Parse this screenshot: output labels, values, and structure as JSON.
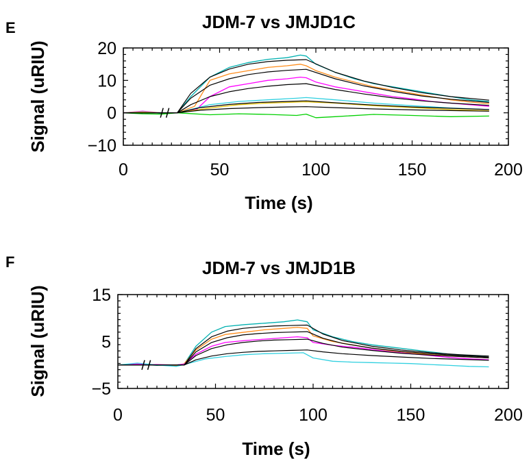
{
  "chart_data": [
    {
      "type": "line",
      "panel_label": "E",
      "title": "JDM-7 vs JMJD1C",
      "xlabel": "Time (s)",
      "ylabel": "Signal (uRIU)",
      "xlim": [
        0,
        200
      ],
      "ylim": [
        -10,
        20
      ],
      "xticks": [
        0,
        50,
        100,
        150,
        200
      ],
      "yticks": [
        -10,
        0,
        10,
        20
      ],
      "grid": false,
      "break_marks_x": [
        20,
        23
      ],
      "series": [
        {
          "color": "#00b0b0",
          "x": [
            0,
            10,
            20,
            28,
            35,
            45,
            55,
            65,
            75,
            85,
            92,
            95,
            100,
            110,
            120,
            130,
            140,
            150,
            160,
            170,
            180,
            190
          ],
          "y": [
            0,
            0.4,
            -0.2,
            0,
            5,
            11,
            14,
            15.5,
            16.5,
            17,
            17.8,
            17.5,
            15,
            12.5,
            10.5,
            9,
            8,
            7,
            6,
            5,
            4,
            3.5
          ]
        },
        {
          "color": "#ff8c1a",
          "x": [
            0,
            10,
            20,
            28,
            37,
            45,
            55,
            65,
            75,
            85,
            92,
            95,
            100,
            110,
            120,
            130,
            140,
            150,
            160,
            170,
            180,
            190
          ],
          "y": [
            0,
            0.3,
            -0.1,
            0,
            2,
            10,
            12,
            13,
            14,
            14.5,
            15,
            14.5,
            13,
            11,
            9.5,
            8,
            7,
            6,
            5,
            4,
            3.3,
            2.8
          ]
        },
        {
          "color": "#ff00ff",
          "x": [
            0,
            10,
            20,
            28,
            38,
            45,
            55,
            65,
            75,
            85,
            92,
            95,
            100,
            110,
            120,
            130,
            140,
            150,
            160,
            170,
            180,
            190
          ],
          "y": [
            0,
            0.5,
            0,
            0,
            1,
            5,
            8,
            9,
            10,
            10.5,
            11,
            10.8,
            9.5,
            8,
            7,
            6,
            5,
            4.3,
            3.5,
            3,
            2.5,
            2
          ]
        },
        {
          "color": "#30d0e0",
          "x": [
            0,
            10,
            20,
            28,
            45,
            60,
            75,
            90,
            95,
            110,
            130,
            150,
            170,
            190
          ],
          "y": [
            0,
            0.3,
            0,
            0,
            2.5,
            3.5,
            4,
            4.5,
            4.7,
            4,
            3,
            2.2,
            1.5,
            1
          ]
        },
        {
          "color": "#e6c000",
          "x": [
            0,
            10,
            20,
            28,
            45,
            60,
            75,
            90,
            95,
            110,
            130,
            150,
            170,
            190
          ],
          "y": [
            0,
            0.2,
            0,
            0,
            1.5,
            2.5,
            3,
            3.3,
            3.4,
            3,
            2.2,
            1.6,
            1,
            0.6
          ]
        },
        {
          "color": "#00d000",
          "x": [
            0,
            10,
            20,
            28,
            45,
            60,
            75,
            90,
            95,
            100,
            110,
            130,
            150,
            170,
            190
          ],
          "y": [
            0,
            -0.3,
            -0.4,
            0,
            -0.6,
            -0.3,
            -0.5,
            -0.8,
            -0.4,
            -1.5,
            -1.2,
            -0.5,
            -0.8,
            -1.2,
            -1
          ]
        },
        {
          "color": "#000000",
          "x": [
            0,
            28,
            35,
            45,
            55,
            65,
            75,
            85,
            95,
            110,
            125,
            140,
            155,
            170,
            190
          ],
          "y": [
            0,
            0,
            6,
            11,
            13.5,
            15,
            15.8,
            16.2,
            16.4,
            12.5,
            9.8,
            7.8,
            6.2,
            5,
            3.9
          ]
        },
        {
          "color": "#000000",
          "x": [
            0,
            28,
            35,
            45,
            55,
            65,
            75,
            85,
            95,
            110,
            125,
            140,
            155,
            170,
            190
          ],
          "y": [
            0,
            0,
            4.5,
            8.5,
            10.5,
            11.8,
            12.6,
            13.1,
            13.4,
            10.5,
            8.3,
            6.6,
            5.2,
            4.2,
            3.2
          ]
        },
        {
          "color": "#000000",
          "x": [
            0,
            28,
            35,
            45,
            55,
            65,
            75,
            85,
            95,
            110,
            125,
            140,
            155,
            170,
            190
          ],
          "y": [
            0,
            0,
            2.5,
            5,
            6.5,
            7.5,
            8.2,
            8.7,
            9,
            7.2,
            5.8,
            4.6,
            3.7,
            3,
            2.3
          ]
        },
        {
          "color": "#000000",
          "x": [
            0,
            28,
            40,
            55,
            70,
            85,
            95,
            110,
            130,
            150,
            170,
            190
          ],
          "y": [
            0,
            0,
            1.6,
            2.6,
            3.2,
            3.5,
            3.7,
            3.1,
            2.4,
            1.8,
            1.4,
            1
          ]
        },
        {
          "color": "#000000",
          "x": [
            0,
            28,
            40,
            55,
            70,
            85,
            95,
            110,
            130,
            150,
            170,
            190
          ],
          "y": [
            0,
            0,
            0.8,
            1.3,
            1.6,
            1.8,
            1.9,
            1.6,
            1.2,
            0.9,
            0.7,
            0.5
          ]
        }
      ]
    },
    {
      "type": "line",
      "panel_label": "F",
      "title": "JDM-7 vs JMJD1B",
      "xlabel": "Time (s)",
      "ylabel": "Signal (uRIU)",
      "xlim": [
        0,
        200
      ],
      "ylim": [
        -5,
        15
      ],
      "xticks": [
        0,
        50,
        100,
        150,
        200
      ],
      "yticks": [
        -5,
        5,
        15
      ],
      "grid": false,
      "break_marks_x": [
        13,
        16
      ],
      "series": [
        {
          "color": "#00b0b0",
          "x": [
            0,
            10,
            20,
            30,
            34,
            40,
            48,
            55,
            65,
            75,
            85,
            92,
            97,
            100,
            110,
            120,
            130,
            140,
            150,
            160,
            170,
            180,
            190
          ],
          "y": [
            0,
            0.2,
            -0.1,
            0,
            0.2,
            4,
            7,
            8.2,
            8.6,
            8.9,
            9.2,
            9.6,
            9.2,
            7.5,
            6,
            5,
            4.3,
            3.8,
            3.3,
            2.8,
            2.3,
            2,
            1.7
          ]
        },
        {
          "color": "#ff8c1a",
          "x": [
            0,
            10,
            20,
            30,
            34,
            40,
            48,
            55,
            65,
            75,
            85,
            92,
            97,
            100,
            110,
            120,
            130,
            140,
            150,
            160,
            170,
            180,
            190
          ],
          "y": [
            0,
            0.3,
            0,
            -0.2,
            0.3,
            3.2,
            5.5,
            6.5,
            7,
            7.5,
            7.8,
            8,
            7.8,
            6.2,
            5,
            4.3,
            3.6,
            3,
            2.6,
            2.2,
            1.9,
            1.7,
            1.5
          ]
        },
        {
          "color": "#ff00ff",
          "x": [
            0,
            10,
            20,
            30,
            34,
            40,
            48,
            55,
            65,
            75,
            85,
            92,
            97,
            100,
            110,
            120,
            130,
            140,
            150,
            160,
            170,
            180,
            190
          ],
          "y": [
            0,
            0.2,
            0.1,
            0,
            0.2,
            2.3,
            4,
            4.8,
            5.2,
            5.5,
            5.8,
            6,
            5.8,
            4.8,
            4.2,
            3.8,
            3.3,
            2.8,
            2.4,
            2,
            1.6,
            1.3,
            1.1
          ]
        },
        {
          "color": "#30d0e0",
          "x": [
            0,
            10,
            20,
            30,
            34,
            45,
            55,
            65,
            75,
            85,
            95,
            100,
            110,
            120,
            130,
            140,
            150,
            160,
            170,
            180,
            190
          ],
          "y": [
            0,
            0.4,
            0,
            -0.3,
            0.1,
            1.3,
            1.8,
            2.2,
            2.4,
            2.5,
            2.6,
            1.5,
            0.8,
            0.6,
            0.5,
            0.4,
            0.3,
            0.1,
            -0.1,
            -0.3,
            -0.4
          ]
        },
        {
          "color": "#000000",
          "x": [
            0,
            34,
            40,
            48,
            56,
            64,
            72,
            80,
            88,
            97,
            105,
            115,
            130,
            145,
            160,
            175,
            190
          ],
          "y": [
            0,
            0,
            3.5,
            6,
            7.2,
            7.8,
            8.1,
            8.3,
            8.4,
            8.5,
            6.6,
            5.2,
            4,
            3.2,
            2.6,
            2.2,
            1.9
          ]
        },
        {
          "color": "#000000",
          "x": [
            0,
            34,
            40,
            48,
            56,
            64,
            72,
            80,
            88,
            97,
            105,
            115,
            130,
            145,
            160,
            175,
            190
          ],
          "y": [
            0,
            0,
            2.8,
            4.8,
            5.8,
            6.4,
            6.7,
            6.9,
            7,
            7.1,
            5.7,
            4.6,
            3.6,
            2.9,
            2.4,
            2,
            1.7
          ]
        },
        {
          "color": "#000000",
          "x": [
            0,
            34,
            40,
            48,
            56,
            64,
            72,
            80,
            88,
            97,
            105,
            115,
            130,
            145,
            160,
            175,
            190
          ],
          "y": [
            0,
            0,
            2,
            3.5,
            4.3,
            4.8,
            5.1,
            5.3,
            5.4,
            5.5,
            4.6,
            3.8,
            3.1,
            2.5,
            2.1,
            1.8,
            1.5
          ]
        },
        {
          "color": "#000000",
          "x": [
            0,
            34,
            40,
            48,
            56,
            64,
            72,
            80,
            88,
            97,
            105,
            115,
            130,
            145,
            160,
            175,
            190
          ],
          "y": [
            0,
            0,
            1.1,
            1.9,
            2.4,
            2.7,
            2.9,
            3,
            3.1,
            3.2,
            2.8,
            2.4,
            2,
            1.7,
            1.4,
            1.2,
            1
          ]
        }
      ]
    }
  ]
}
